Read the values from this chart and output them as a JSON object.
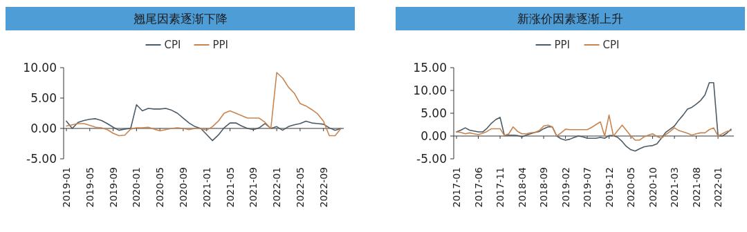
{
  "chart_data": [
    {
      "type": "line",
      "title": "翘尾因素逐渐下降",
      "legend": "top",
      "ylim": [
        -5,
        10
      ],
      "yticks": [
        {
          "value": -5,
          "label": "-5.00"
        },
        {
          "value": 0,
          "label": "0.00"
        },
        {
          "value": 5,
          "label": "5.00"
        },
        {
          "value": 10,
          "label": "10.00"
        }
      ],
      "categories": [
        "2019-01",
        null,
        null,
        null,
        "2019-05",
        null,
        null,
        null,
        "2019-09",
        null,
        null,
        null,
        "2020-01",
        null,
        null,
        null,
        "2020-05",
        null,
        null,
        null,
        "2020-09",
        null,
        null,
        null,
        "2021-01",
        null,
        null,
        null,
        "2021-05",
        null,
        null,
        null,
        "2021-09",
        null,
        null,
        null,
        "2022-01",
        null,
        null,
        null,
        "2022-05",
        null,
        null,
        null,
        "2022-09",
        null,
        null,
        null
      ],
      "series": [
        {
          "name": "CPI",
          "color": "#4a5a66",
          "values": [
            1.2,
            0.0,
            1.0,
            1.3,
            1.5,
            1.6,
            1.3,
            0.8,
            0.2,
            -0.3,
            -0.1,
            0,
            3.9,
            2.9,
            3.3,
            3.2,
            3.2,
            3.3,
            3.0,
            2.5,
            1.7,
            0.9,
            0.3,
            0,
            -1.0,
            -2.0,
            -1.1,
            0.1,
            0.9,
            0.9,
            0.4,
            0,
            -0.2,
            0.1,
            0.8,
            0,
            0.3,
            -0.3,
            0.3,
            0.6,
            0.8,
            1.2,
            0.9,
            0.8,
            0.7,
            0.1,
            -0.3,
            0
          ]
        },
        {
          "name": "PPI",
          "color": "#c8844e",
          "values": [
            0.4,
            0.6,
            0.8,
            0.8,
            0.5,
            0.2,
            0.1,
            -0.2,
            -0.8,
            -1.2,
            -1.1,
            -0.1,
            0.1,
            0.1,
            0.2,
            -0.1,
            -0.4,
            -0.2,
            0,
            0.1,
            0,
            -0.2,
            0,
            0,
            -0.3,
            0.3,
            1.2,
            2.5,
            2.9,
            2.5,
            2.1,
            1.7,
            1.7,
            1.7,
            1.0,
            0,
            9.2,
            8.3,
            6.8,
            5.8,
            4.1,
            3.7,
            3.1,
            2.4,
            1.2,
            -1.2,
            -1.2,
            0
          ]
        }
      ]
    },
    {
      "type": "line",
      "title": "新涨价因素逐渐上升",
      "legend": "top",
      "ylim": [
        -5,
        15
      ],
      "yticks": [
        {
          "value": -5,
          "label": "-5.00"
        },
        {
          "value": 0,
          "label": "0.00"
        },
        {
          "value": 5,
          "label": "5.00"
        },
        {
          "value": 10,
          "label": "10.00"
        },
        {
          "value": 15,
          "label": "15.00"
        }
      ],
      "categories": [
        "2017-01",
        null,
        null,
        null,
        null,
        "2017-06",
        null,
        null,
        null,
        null,
        "2017-11",
        null,
        null,
        null,
        null,
        "2018-04",
        null,
        null,
        null,
        null,
        "2018-09",
        null,
        null,
        null,
        null,
        "2019-02",
        null,
        null,
        null,
        null,
        "2019-07",
        null,
        null,
        null,
        null,
        "2019-12",
        null,
        null,
        null,
        null,
        "2020-05",
        null,
        null,
        null,
        null,
        "2020-10",
        null,
        null,
        null,
        null,
        "2021-03",
        null,
        null,
        null,
        null,
        "2021-08",
        null,
        null,
        null,
        null,
        "2022-01",
        null,
        null,
        null
      ],
      "series": [
        {
          "name": "PPI",
          "color": "#4a5a66",
          "values": [
            0.9,
            1.3,
            1.8,
            1.3,
            1.1,
            0.9,
            0.9,
            1.7,
            2.8,
            3.6,
            4.1,
            0.1,
            0.2,
            0.2,
            0.1,
            -0.2,
            0.2,
            0.5,
            0.8,
            1.0,
            1.6,
            2.0,
            2.0,
            0.0,
            -0.6,
            -0.9,
            -0.7,
            -0.3,
            0.0,
            -0.2,
            -0.5,
            -0.5,
            -0.5,
            -0.3,
            -0.5,
            0.1,
            0.1,
            -0.3,
            -1.2,
            -2.3,
            -3.0,
            -3.3,
            -2.8,
            -2.4,
            -2.2,
            -2.1,
            -1.7,
            -0.5,
            0.8,
            1.5,
            2.2,
            3.5,
            4.6,
            5.9,
            6.3,
            7.0,
            7.8,
            9.0,
            11.7,
            11.7,
            0.1,
            0.0,
            0.6,
            1.5
          ]
        },
        {
          "name": "CPI",
          "color": "#c8844e",
          "values": [
            0.9,
            0.8,
            0.5,
            0.7,
            0.5,
            0.3,
            0.6,
            1.0,
            1.6,
            1.6,
            1.6,
            0.1,
            0.5,
            2.0,
            1.0,
            0.5,
            0.5,
            0.7,
            0.8,
            1.2,
            2.2,
            2.4,
            2.0,
            0.0,
            0.7,
            1.5,
            1.4,
            1.4,
            1.4,
            1.4,
            1.4,
            1.9,
            2.5,
            3.1,
            0.0,
            4.6,
            0.0,
            1.2,
            2.4,
            1.2,
            0.0,
            -0.9,
            -0.9,
            -0.2,
            0.2,
            0.5,
            -0.1,
            -0.5,
            0.3,
            1.0,
            1.8,
            1.2,
            0.9,
            0.6,
            0.2,
            0.5,
            0.7,
            0.7,
            1.4,
            1.8,
            0.0,
            0.5,
            1.0,
            1.2
          ]
        }
      ]
    }
  ]
}
